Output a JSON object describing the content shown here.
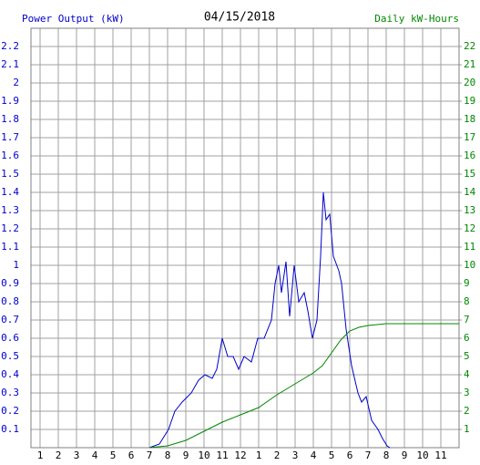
{
  "chart_data": {
    "type": "line",
    "title": "04/15/2018",
    "ylabel": "Power Output (kW)",
    "y2label": "Daily kW-Hours",
    "xlim": [
      0.5,
      24
    ],
    "xticks": [
      1,
      2,
      3,
      4,
      5,
      6,
      7,
      8,
      9,
      10,
      11,
      12,
      {
        "value": 13,
        "label": "1"
      },
      {
        "value": 14,
        "label": "2"
      },
      {
        "value": 15,
        "label": "3"
      },
      {
        "value": 16,
        "label": "4"
      },
      {
        "value": 17,
        "label": "5"
      },
      {
        "value": 18,
        "label": "6"
      },
      {
        "value": 19,
        "label": "7"
      },
      {
        "value": 20,
        "label": "8"
      },
      {
        "value": 21,
        "label": "9"
      },
      {
        "value": 22,
        "label": "10"
      },
      {
        "value": 23,
        "label": "11"
      }
    ],
    "ylim": [
      0,
      2.3
    ],
    "yticks": [
      0.1,
      0.2,
      0.3,
      0.4,
      0.5,
      0.6,
      0.7,
      0.8,
      0.9,
      1.0,
      1.1,
      1.2,
      1.3,
      1.4,
      1.5,
      1.6,
      1.7,
      1.8,
      1.9,
      2.0,
      2.1,
      2.2
    ],
    "y2lim": [
      0,
      23
    ],
    "y2ticks": [
      1,
      2,
      3,
      4,
      5,
      6,
      7,
      8,
      9,
      10,
      11,
      12,
      13,
      14,
      15,
      16,
      17,
      18,
      19,
      20,
      21,
      22
    ],
    "grid": true,
    "series": [
      {
        "color": "#0000cc",
        "x": [
          7.0,
          7.55,
          8.05,
          8.4,
          8.8,
          9.3,
          9.7,
          10.05,
          10.45,
          10.7,
          11.0,
          11.3,
          11.6,
          11.9,
          12.2,
          12.6,
          12.95,
          13.3,
          13.7,
          13.9,
          14.1,
          14.25,
          14.5,
          14.7,
          14.95,
          15.2,
          15.5,
          15.7,
          15.95,
          16.2,
          16.4,
          16.55,
          16.7,
          16.9,
          17.1,
          17.4,
          17.55,
          17.8,
          18.1,
          18.45,
          18.65,
          18.9,
          19.2,
          19.55,
          19.8,
          20.05,
          20.2
        ],
        "values": [
          0,
          0.02,
          0.1,
          0.2,
          0.25,
          0.3,
          0.37,
          0.4,
          0.38,
          0.43,
          0.6,
          0.5,
          0.5,
          0.43,
          0.5,
          0.47,
          0.6,
          0.6,
          0.7,
          0.9,
          1.0,
          0.85,
          1.02,
          0.72,
          1.0,
          0.8,
          0.85,
          0.75,
          0.6,
          0.7,
          1.05,
          1.4,
          1.25,
          1.28,
          1.05,
          0.97,
          0.9,
          0.65,
          0.45,
          0.3,
          0.25,
          0.28,
          0.15,
          0.1,
          0.05,
          0.01,
          0
        ]
      },
      {
        "color": "#008800",
        "axis": "y2",
        "x": [
          7,
          8,
          9,
          10,
          11,
          12,
          13,
          14,
          15,
          16,
          16.5,
          17,
          17.5,
          18,
          18.5,
          19,
          20,
          24
        ],
        "values": [
          0,
          0.1,
          0.4,
          0.9,
          1.4,
          1.8,
          2.2,
          2.9,
          3.5,
          4.1,
          4.5,
          5.2,
          5.9,
          6.4,
          6.6,
          6.7,
          6.8,
          6.8
        ]
      }
    ]
  }
}
